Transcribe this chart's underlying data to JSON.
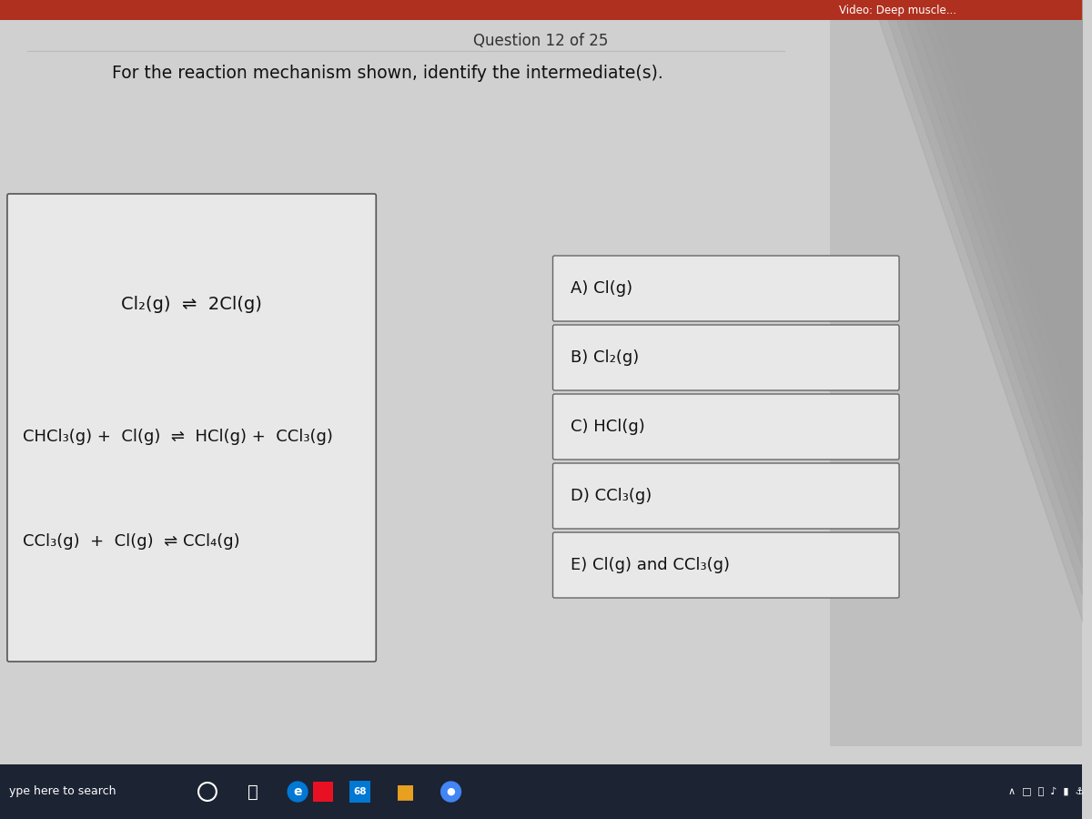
{
  "bg_color": "#d0d0d0",
  "top_bar_color": "#b03020",
  "top_bar_text": "Video: Deep muscle...",
  "question_header": "Question 12 of 25",
  "question_text": "For the reaction mechanism shown, identify the intermediate(s).",
  "reaction1": "Cl₂(g)  ⇌  2Cl(g)",
  "reaction2": "CHCl₃(g) +  Cl(g)  ⇌  HCl(g) +  CCl₃(g)",
  "reaction3": "CCl₃(g)  +  Cl(g)  ⇌ CCl₄(g)",
  "choices": [
    "A) Cl(g)",
    "B) Cl₂(g)",
    "C) HCl(g)",
    "D) CCl₃(g)",
    "E) Cl(g) and CCl₃(g)"
  ],
  "taskbar_color": "#1c2333",
  "right_panel_color": "#b8b8b8"
}
